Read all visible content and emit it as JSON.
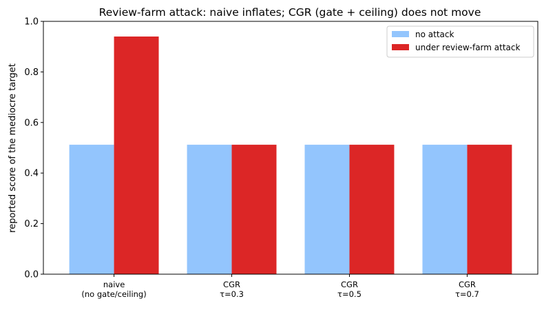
{
  "chart_data": {
    "type": "bar",
    "title": "Review-farm attack: naive inflates; CGR (gate + ceiling) does not move",
    "xlabel": "",
    "ylabel": "reported score of the mediocre target",
    "ylim": [
      0,
      1.0
    ],
    "yticks": [
      0.0,
      0.2,
      0.4,
      0.6,
      0.8,
      1.0
    ],
    "categories": [
      [
        "naive",
        "(no gate/ceiling)"
      ],
      [
        "CGR",
        "τ=0.3"
      ],
      [
        "CGR",
        "τ=0.5"
      ],
      [
        "CGR",
        "τ=0.7"
      ]
    ],
    "series": [
      {
        "name": "no attack",
        "color": "#93c5fd",
        "values": [
          0.512,
          0.512,
          0.512,
          0.512
        ]
      },
      {
        "name": "under review-farm attack",
        "color": "#dc2626",
        "values": [
          0.94,
          0.512,
          0.512,
          0.512
        ]
      }
    ],
    "legend_position": "top-right",
    "grid": false
  }
}
